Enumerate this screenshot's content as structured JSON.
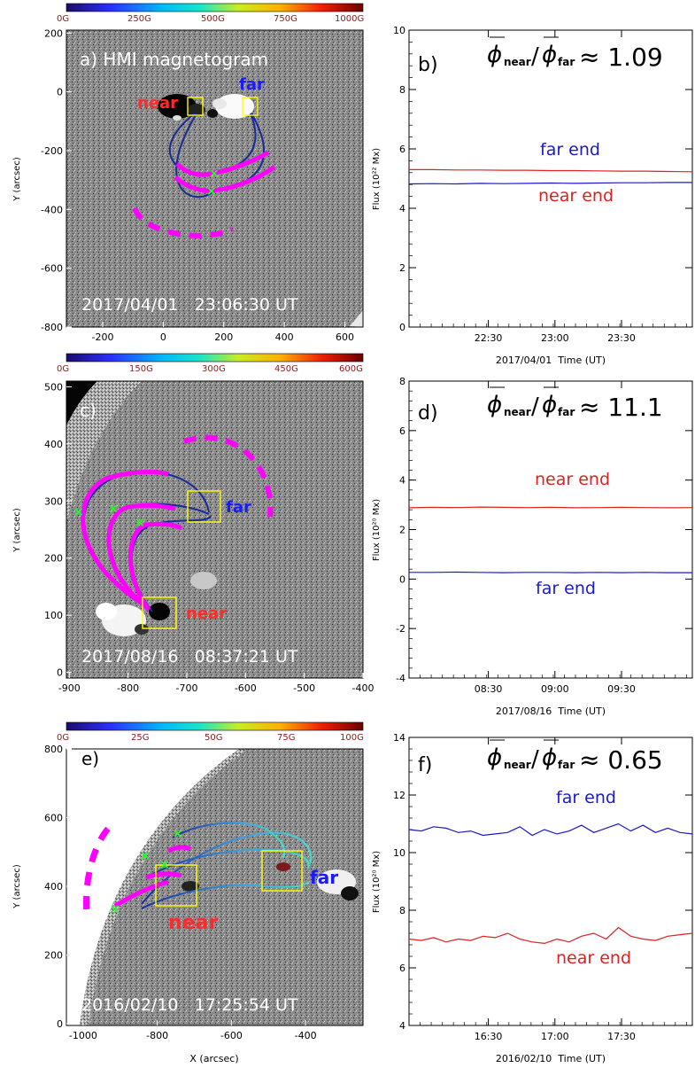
{
  "chart_data": [
    {
      "type": "heatmap",
      "panel_label": "a) HMI magnetogram",
      "timestamp": "2017/04/01   23:06:30 UT",
      "colorbar_ticks": [
        "0G",
        "250G",
        "500G",
        "750G",
        "1000G"
      ],
      "ylabel": "Y (arcsec)",
      "xlabel": "",
      "xlim": [
        -320,
        660
      ],
      "ylim": [
        -800,
        210
      ],
      "x_ticks": [
        -200,
        0,
        200,
        400,
        600
      ],
      "y_ticks": [
        -800,
        -600,
        -400,
        -200,
        0,
        200
      ],
      "annotations": [
        {
          "text": "near",
          "color": "#ff2a2a"
        },
        {
          "text": "far",
          "color": "#1a1aff"
        }
      ]
    },
    {
      "type": "line",
      "panel_label": "b)",
      "ratio_text": "≈ 1.09",
      "ylabel": "Flux (10²² Mx)",
      "xlabel": "2017/04/01  Time (UT)",
      "x_ticks": [
        "22:30",
        "23:00",
        "23:30"
      ],
      "ylim": [
        0,
        10
      ],
      "y_ticks": [
        0,
        2,
        4,
        6,
        8,
        10
      ],
      "series": [
        {
          "name": "far end",
          "color": "#1a1acc",
          "values": [
            4.82,
            4.83,
            4.82,
            4.84,
            4.83,
            4.84,
            4.85,
            4.84,
            4.85,
            4.86,
            4.86,
            4.87,
            4.87
          ]
        },
        {
          "name": "near end",
          "color": "#dd2222",
          "values": [
            5.3,
            5.3,
            5.29,
            5.29,
            5.28,
            5.28,
            5.27,
            5.27,
            5.26,
            5.25,
            5.25,
            5.24,
            5.23
          ]
        }
      ]
    },
    {
      "type": "heatmap",
      "panel_label": "c)",
      "timestamp": "2017/08/16   08:37:21 UT",
      "colorbar_ticks": [
        "0G",
        "150G",
        "300G",
        "450G",
        "600G"
      ],
      "ylabel": "Y (arcsec)",
      "xlabel": "",
      "xlim": [
        -905,
        -400
      ],
      "ylim": [
        -10,
        510
      ],
      "x_ticks": [
        -900,
        -800,
        -700,
        -600,
        -500,
        -400
      ],
      "y_ticks": [
        0,
        100,
        200,
        300,
        400,
        500
      ],
      "annotations": [
        {
          "text": "far",
          "color": "#1a1aff"
        },
        {
          "text": "near",
          "color": "#ff2a2a"
        }
      ]
    },
    {
      "type": "line",
      "panel_label": "d)",
      "ratio_text": "≈ 11.1",
      "ylabel": "Flux (10²⁰ Mx)",
      "xlabel": "2017/08/16  Time (UT)",
      "x_ticks": [
        "08:30",
        "09:00",
        "09:30"
      ],
      "ylim": [
        -4,
        8
      ],
      "y_ticks": [
        -4,
        -2,
        0,
        2,
        4,
        6,
        8
      ],
      "series": [
        {
          "name": "near end",
          "color": "#dd2222",
          "values": [
            2.88,
            2.9,
            2.89,
            2.91,
            2.9,
            2.89,
            2.9,
            2.88,
            2.89,
            2.9,
            2.89,
            2.88,
            2.89
          ]
        },
        {
          "name": "far end",
          "color": "#1a1acc",
          "values": [
            0.27,
            0.27,
            0.28,
            0.27,
            0.26,
            0.27,
            0.27,
            0.26,
            0.27,
            0.26,
            0.27,
            0.26,
            0.26
          ]
        }
      ]
    },
    {
      "type": "heatmap",
      "panel_label": "e)",
      "timestamp": "2016/02/10   17:25:54 UT",
      "colorbar_ticks": [
        "0G",
        "25G",
        "50G",
        "75G",
        "100G"
      ],
      "ylabel": "Y (arcsec)",
      "xlabel": "X (arcsec)",
      "xlim": [
        -1045,
        -245
      ],
      "ylim": [
        -5,
        800
      ],
      "x_ticks": [
        -1000,
        -800,
        -600,
        -400
      ],
      "y_ticks": [
        0,
        200,
        400,
        600,
        800
      ],
      "annotations": [
        {
          "text": "far",
          "color": "#1a1aff"
        },
        {
          "text": "near",
          "color": "#ff2a2a"
        }
      ]
    },
    {
      "type": "line",
      "panel_label": "f)",
      "ratio_text": "≈ 0.65",
      "ylabel": "Flux (10²⁰ Mx)",
      "xlabel": "2016/02/10  Time (UT)",
      "x_ticks": [
        "16:30",
        "17:00",
        "17:30"
      ],
      "ylim": [
        4,
        14
      ],
      "y_ticks": [
        4,
        6,
        8,
        10,
        12,
        14
      ],
      "series": [
        {
          "name": "far end",
          "color": "#1a1acc",
          "values": [
            10.8,
            10.75,
            10.9,
            10.85,
            10.7,
            10.75,
            10.6,
            10.65,
            10.7,
            10.9,
            10.6,
            10.8,
            10.65,
            10.75,
            10.95,
            10.7,
            10.85,
            11.0,
            10.75,
            10.95,
            10.7,
            10.85,
            10.7,
            10.65
          ]
        },
        {
          "name": "near end",
          "color": "#dd2222",
          "values": [
            7.0,
            6.95,
            7.05,
            6.9,
            7.0,
            6.95,
            7.1,
            7.05,
            7.2,
            7.0,
            6.9,
            6.85,
            7.0,
            6.9,
            7.1,
            7.2,
            7.0,
            7.4,
            7.1,
            7.0,
            6.95,
            7.1,
            7.15,
            7.2
          ]
        }
      ]
    }
  ]
}
